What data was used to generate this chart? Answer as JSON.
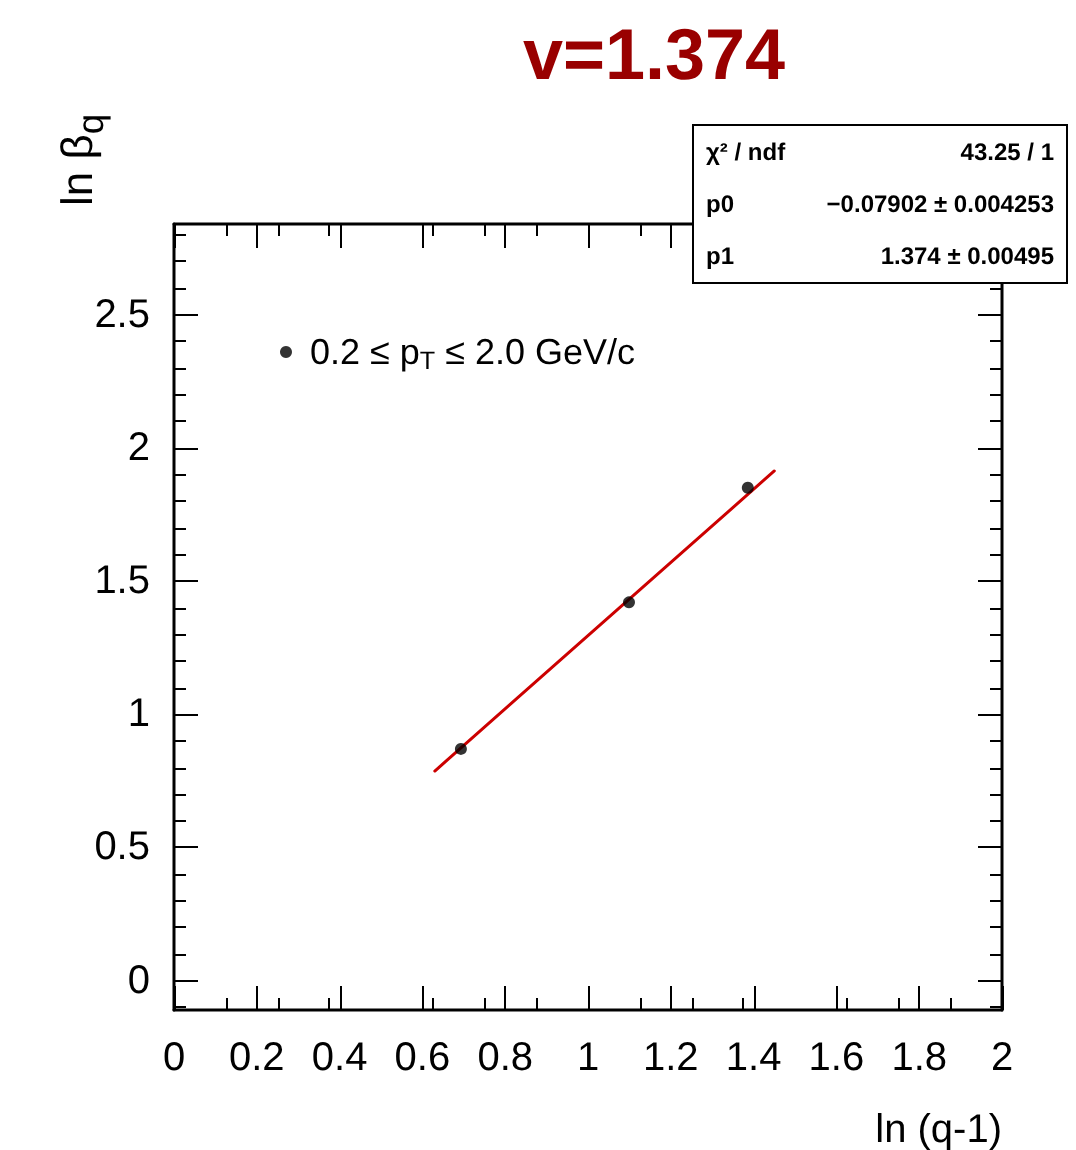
{
  "chart_data": {
    "type": "scatter",
    "title": "v=1.374",
    "xlabel": "ln (q-1)",
    "ylabel": "ln β$_{q}$",
    "series": [
      {
        "name": "0.2 ≤ p$_{T}$ ≤ 2.0 GeV/c",
        "color": "#000000",
        "marker": "circle",
        "x": [
          0.693,
          1.099,
          1.386
        ],
        "values": [
          0.87,
          1.42,
          1.85
        ]
      },
      {
        "type": "line",
        "color": "#cc0000",
        "marker": "none",
        "line_style": "solid",
        "x": [
          0.63,
          1.45
        ],
        "values": [
          0.787,
          1.913
        ]
      }
    ],
    "annotations": [
      "χ² / ndf",
      "43.25 / 1",
      "p0",
      "−0.07902 ± 0.004253",
      "p1",
      "1.374 ± 0.00495"
    ],
    "xlim": [
      0,
      2
    ],
    "xticks": [
      0,
      0.2,
      0.4,
      0.6,
      0.8,
      1,
      1.2,
      1.4,
      1.6,
      1.8,
      2
    ],
    "ylim": [
      -0.11,
      2.84
    ],
    "yticks": [
      0,
      0.5,
      1,
      1.5,
      2,
      2.5
    ],
    "grid": false,
    "legend": "top left"
  }
}
